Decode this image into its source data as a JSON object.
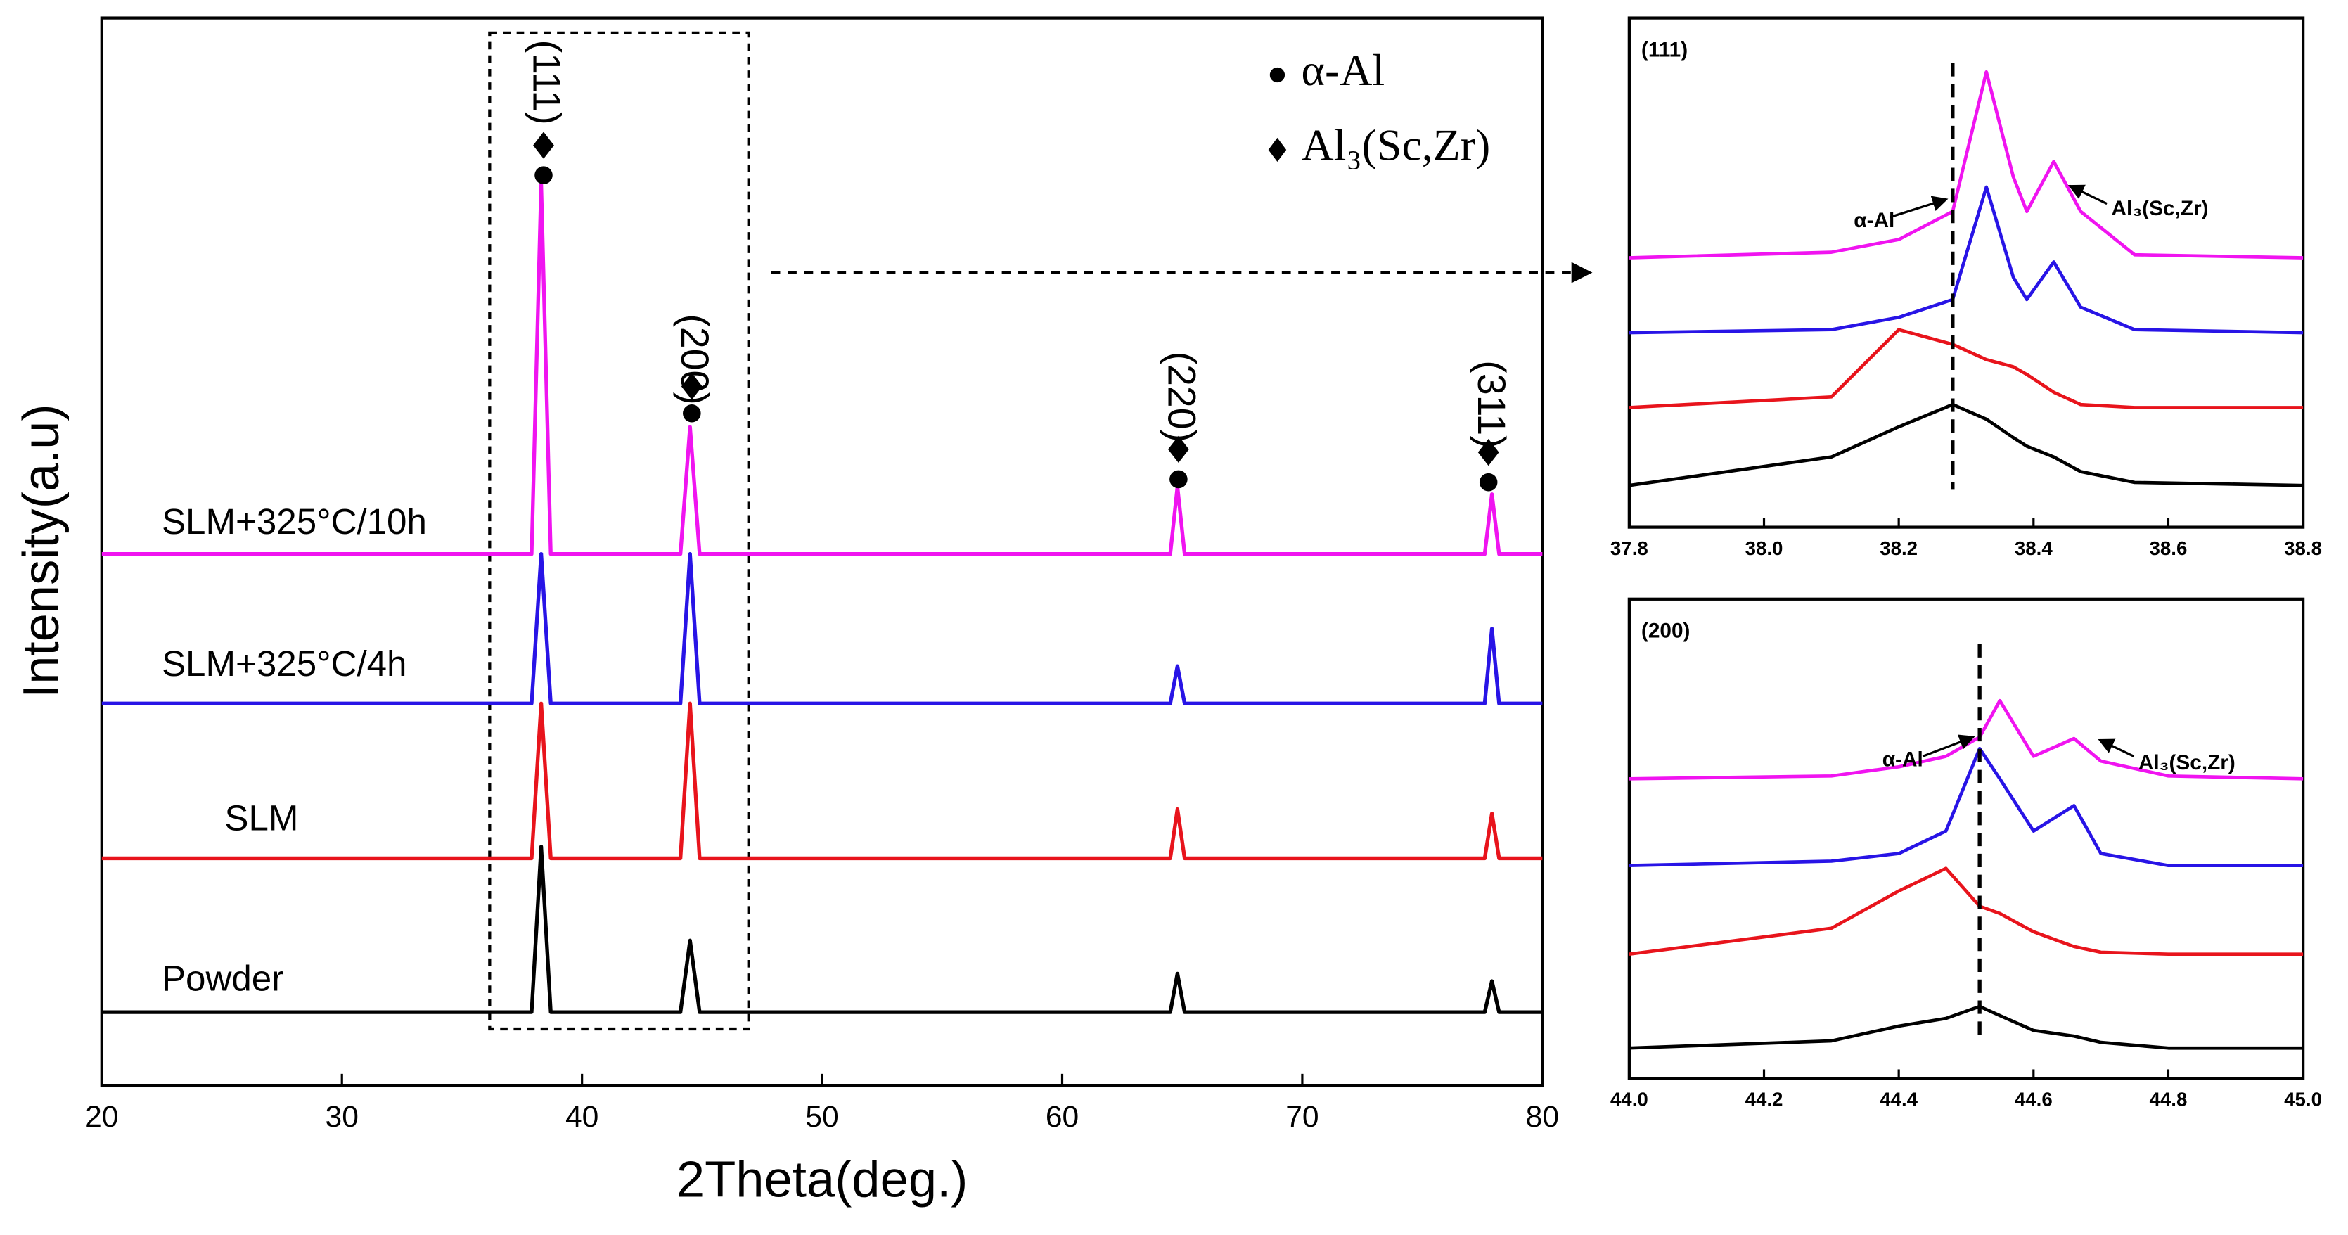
{
  "chart_data": [
    {
      "type": "line",
      "xlabel": "2Theta(deg.)",
      "ylabel": "Intensity(a.u)",
      "x": [
        20,
        37.9,
        38.3,
        38.7,
        44.1,
        44.5,
        44.9,
        64.5,
        64.8,
        65.1,
        77.6,
        77.9,
        78.2,
        80
      ],
      "xlim": [
        20,
        80
      ],
      "xticks": [
        20,
        30,
        40,
        50,
        60,
        70,
        80
      ],
      "ylim": [
        0,
        100
      ],
      "series": [
        {
          "name": "Powder",
          "color": "#000000",
          "values": [
            6.9,
            6.9,
            22.4,
            6.9,
            6.9,
            13.6,
            6.9,
            6.9,
            10.5,
            6.9,
            6.9,
            9.8,
            6.9,
            6.9
          ]
        },
        {
          "name": "SLM",
          "color": "#e8141c",
          "values": [
            21.3,
            21.3,
            35.8,
            21.3,
            21.3,
            35.8,
            21.3,
            21.3,
            25.9,
            21.3,
            21.3,
            25.5,
            21.3,
            21.3
          ]
        },
        {
          "name": "SLM+325°C/4h",
          "color": "#2814e6",
          "values": [
            35.8,
            35.8,
            49.8,
            35.8,
            35.8,
            49.8,
            35.8,
            35.8,
            39.3,
            35.8,
            35.8,
            42.8,
            35.8,
            35.8
          ]
        },
        {
          "name": "SLM+325°C/10h",
          "color": "#f014f0",
          "values": [
            49.8,
            49.8,
            84.4,
            49.8,
            49.8,
            61.7,
            49.8,
            49.8,
            56.1,
            49.8,
            49.8,
            55.4,
            49.8,
            49.8
          ]
        }
      ],
      "annotations": [
        "(111)",
        "(200)",
        "(220)",
        "(311)"
      ],
      "legend": [
        {
          "marker": "circle",
          "label": "α-Al"
        },
        {
          "marker": "diamond",
          "label": "Al₃(Sc,Zr)"
        }
      ]
    },
    {
      "type": "line",
      "title": "(111)",
      "x": [
        37.8,
        38.1,
        38.2,
        38.28,
        38.33,
        38.37,
        38.39,
        38.43,
        38.47,
        38.55,
        38.8
      ],
      "xlim": [
        37.8,
        38.8
      ],
      "xticks": [
        37.8,
        {
          "value": 38,
          "label": "38.0"
        },
        38.2,
        38.4,
        38.6,
        38.8
      ],
      "ylim": [
        0,
        100
      ],
      "vline": 38.28,
      "series": [
        {
          "color": "#000000",
          "values": [
            8.2,
            13.8,
            19.7,
            24.1,
            21.2,
            17.6,
            15.9,
            13.8,
            10.9,
            8.8,
            8.2
          ]
        },
        {
          "color": "#e8141c",
          "values": [
            23.5,
            25.6,
            38.8,
            35.9,
            32.9,
            31.5,
            30,
            26.5,
            24.1,
            23.5,
            23.5
          ]
        },
        {
          "color": "#2814e6",
          "values": [
            38.2,
            38.8,
            41.2,
            44.7,
            66.8,
            49.1,
            44.7,
            52.1,
            43.2,
            38.8,
            38.2
          ]
        },
        {
          "color": "#f014f0",
          "values": [
            52.9,
            54,
            56.5,
            62,
            89.4,
            68.8,
            62,
            71.8,
            62,
            53.5,
            52.9
          ]
        }
      ],
      "annotations": [
        "α-Al",
        "Al₃(Sc,Zr)"
      ]
    },
    {
      "type": "line",
      "title": "(200)",
      "x": [
        44.0,
        44.3,
        44.4,
        44.47,
        44.52,
        44.55,
        44.6,
        44.66,
        44.7,
        44.8,
        45.0
      ],
      "xlim": [
        44,
        45
      ],
      "xticks": [
        {
          "value": 44,
          "label": "44.0"
        },
        44.2,
        44.4,
        44.6,
        44.8,
        {
          "value": 45,
          "label": "45.0"
        }
      ],
      "ylim": [
        0,
        100
      ],
      "vline": 44.52,
      "series": [
        {
          "color": "#000000",
          "values": [
            6.3,
            7.8,
            10.9,
            12.5,
            15,
            13.1,
            10,
            8.8,
            7.5,
            6.3,
            6.3
          ]
        },
        {
          "color": "#e8141c",
          "values": [
            25.9,
            31.3,
            39.1,
            43.8,
            35.9,
            34.4,
            30.6,
            27.5,
            26.3,
            25.9,
            25.9
          ]
        },
        {
          "color": "#2814e6",
          "values": [
            44.4,
            45.3,
            46.9,
            51.6,
            68.8,
            62.5,
            51.6,
            56.9,
            46.9,
            44.4,
            44.4
          ]
        },
        {
          "color": "#f014f0",
          "values": [
            62.5,
            63.1,
            65,
            67.2,
            71.2,
            78.8,
            67.2,
            70.9,
            66.2,
            63.1,
            62.5
          ]
        }
      ],
      "annotations": [
        "α-Al",
        "Al₃(Sc,Zr)"
      ]
    }
  ]
}
